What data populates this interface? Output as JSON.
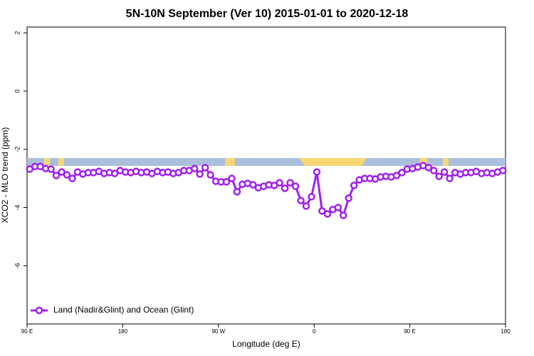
{
  "chart_data": {
    "type": "line",
    "title": "5N-10N September (Ver 10)   2015-01-01 to 2020-12-18",
    "x_label": "Longitude (deg E)",
    "y_label": "XCO2 - MLO trend (ppm)",
    "xlim": [
      90,
      540
    ],
    "xticks": [
      {
        "value": 90,
        "label": "90 E"
      },
      {
        "value": 180,
        "label": "180"
      },
      {
        "value": 270,
        "label": "90 W"
      },
      {
        "value": 360,
        "label": "0"
      },
      {
        "value": 450,
        "label": "90 E"
      },
      {
        "value": 540,
        "label": "180"
      }
    ],
    "ylim": [
      -8,
      2.2
    ],
    "yticks": [
      2,
      0,
      -2,
      -4,
      -6
    ],
    "legend": "bottomleft",
    "x": [
      92.5,
      97.5,
      102.5,
      107.5,
      112.5,
      117.5,
      122.5,
      127.5,
      132.5,
      137.5,
      142.5,
      147.5,
      152.5,
      157.5,
      162.5,
      167.5,
      172.5,
      177.5,
      182.5,
      187.5,
      192.5,
      197.5,
      202.5,
      207.5,
      212.5,
      217.5,
      222.5,
      227.5,
      232.5,
      237.5,
      242.5,
      247.5,
      252.5,
      257.5,
      262.5,
      267.5,
      272.5,
      277.5,
      282.5,
      287.5,
      292.5,
      297.5,
      302.5,
      307.5,
      312.5,
      317.5,
      322.5,
      327.5,
      332.5,
      337.5,
      342.5,
      347.5,
      352.5,
      357.5,
      362.5,
      367.5,
      372.5,
      377.5,
      382.5,
      387.5,
      392.5,
      397.5,
      402.5,
      407.5,
      412.5,
      417.5,
      422.5,
      427.5,
      432.5,
      437.5,
      442.5,
      447.5,
      452.5,
      457.5,
      462.5,
      467.5,
      472.5,
      477.5,
      482.5,
      487.5,
      492.5,
      497.5,
      502.5,
      507.5,
      512.5,
      517.5,
      522.5,
      527.5,
      532.5,
      537.5
    ],
    "series": [
      {
        "name": "Land (Nadir&Glint) and Ocean (Glint)",
        "color": "#a020f0",
        "values": [
          -2.68,
          -2.59,
          -2.59,
          -2.66,
          -2.68,
          -2.9,
          -2.78,
          -2.88,
          -3.0,
          -2.78,
          -2.85,
          -2.8,
          -2.8,
          -2.76,
          -2.83,
          -2.8,
          -2.83,
          -2.73,
          -2.78,
          -2.8,
          -2.76,
          -2.8,
          -2.78,
          -2.83,
          -2.76,
          -2.8,
          -2.78,
          -2.83,
          -2.8,
          -2.73,
          -2.73,
          -2.66,
          -2.85,
          -2.63,
          -2.88,
          -3.1,
          -3.12,
          -3.12,
          -3.0,
          -3.46,
          -3.2,
          -3.17,
          -3.22,
          -3.32,
          -3.27,
          -3.22,
          -3.24,
          -3.15,
          -3.34,
          -3.15,
          -3.27,
          -3.76,
          -3.95,
          -3.63,
          -2.78,
          -4.12,
          -4.22,
          -4.07,
          -4.0,
          -4.27,
          -3.68,
          -3.24,
          -3.05,
          -3.0,
          -3.0,
          -3.02,
          -2.95,
          -2.93,
          -2.95,
          -2.9,
          -2.8,
          -2.68,
          -2.66,
          -2.61,
          -2.56,
          -2.63,
          -2.73,
          -2.93,
          -2.78,
          -3.0,
          -2.8,
          -2.85,
          -2.8,
          -2.8,
          -2.76,
          -2.83,
          -2.8,
          -2.83,
          -2.78,
          -2.73
        ]
      }
    ]
  }
}
